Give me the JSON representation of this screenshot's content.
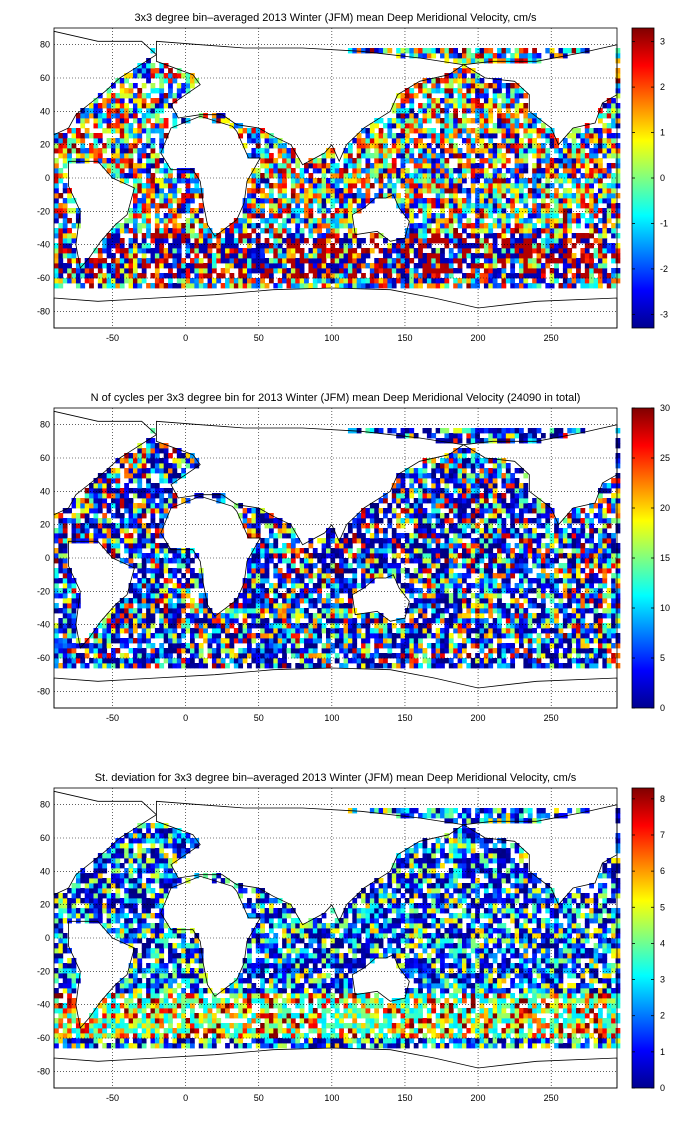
{
  "chart_data": [
    {
      "type": "heatmap",
      "title": "3x3 degree bin–averaged 2013 Winter (JFM) mean Deep Meridional Velocity, cm/s",
      "xticks": [
        -50,
        0,
        50,
        100,
        150,
        200,
        250
      ],
      "yticks": [
        80,
        60,
        40,
        20,
        0,
        -20,
        -40,
        -60,
        -80
      ],
      "xlim": [
        -90,
        295
      ],
      "ylim": [
        -90,
        90
      ],
      "colorbar": {
        "ticks": [
          3,
          2,
          1,
          0,
          -1,
          -2,
          -3
        ],
        "range": [
          -3.3,
          3.3
        ],
        "colormap": "jet"
      },
      "grid": true,
      "bin_size_deg": 3
    },
    {
      "type": "heatmap",
      "title": "N of cycles per 3x3 degree bin for 2013 Winter (JFM) mean Deep Meridional Velocity (24090 in total)",
      "xticks": [
        -50,
        0,
        50,
        100,
        150,
        200,
        250
      ],
      "yticks": [
        80,
        60,
        40,
        20,
        0,
        -20,
        -40,
        -60,
        -80
      ],
      "xlim": [
        -90,
        295
      ],
      "ylim": [
        -90,
        90
      ],
      "colorbar": {
        "ticks": [
          30,
          25,
          20,
          15,
          10,
          5,
          0
        ],
        "range": [
          0,
          30
        ],
        "colormap": "jet"
      },
      "grid": true,
      "bin_size_deg": 3
    },
    {
      "type": "heatmap",
      "title": "St. deviation for 3x3 degree bin–averaged 2013 Winter (JFM) mean Deep Meridional Velocity, cm/s",
      "xticks": [
        -50,
        0,
        50,
        100,
        150,
        200,
        250
      ],
      "yticks": [
        80,
        60,
        40,
        20,
        0,
        -20,
        -40,
        -60,
        -80
      ],
      "xlim": [
        -90,
        295
      ],
      "ylim": [
        -90,
        90
      ],
      "colorbar": {
        "ticks": [
          8,
          7,
          6,
          5,
          4,
          3,
          2,
          1,
          0
        ],
        "range": [
          0,
          8.3
        ],
        "colormap": "jet"
      },
      "grid": true,
      "bin_size_deg": 3
    }
  ]
}
